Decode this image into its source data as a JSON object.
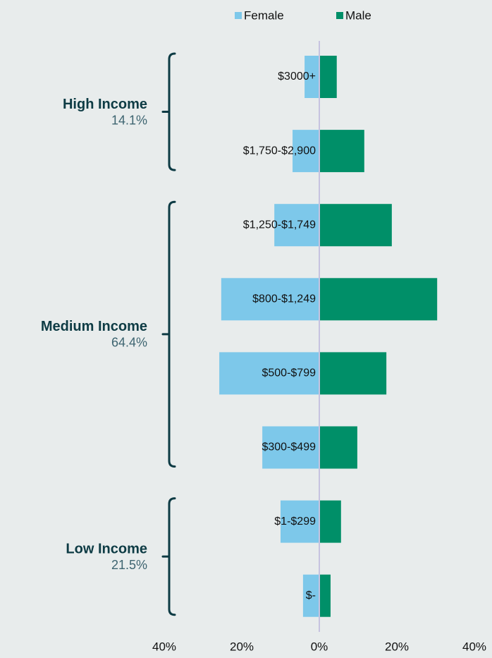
{
  "chart_data": {
    "type": "butterfly_bar",
    "groups": [
      {
        "name": "High Income",
        "share": "14.1%",
        "categories": [
          "$3000+",
          "$1,750-$2,900"
        ]
      },
      {
        "name": "Medium Income",
        "share": "64.4%",
        "categories": [
          "$1,250-$1,749",
          "$800-$1,249",
          "$500-$799",
          "$300-$499"
        ]
      },
      {
        "name": "Low Income",
        "share": "21.5%",
        "categories": [
          "$1-$299",
          "$-"
        ]
      }
    ],
    "series": [
      {
        "name": "Female",
        "color": "#7dc8ea",
        "side": "left",
        "values": [
          3.8,
          6.9,
          11.6,
          25.3,
          25.8,
          14.7,
          10.0,
          4.2
        ]
      },
      {
        "name": "Male",
        "color": "#008f68",
        "side": "right",
        "values": [
          4.5,
          11.6,
          18.7,
          30.4,
          17.3,
          9.8,
          5.6,
          2.9
        ]
      }
    ],
    "xlim": [
      -40,
      40
    ],
    "xticks": [
      {
        "value": -40,
        "label": "40%"
      },
      {
        "value": -20,
        "label": "20%"
      },
      {
        "value": 0,
        "label": "0%"
      },
      {
        "value": 20,
        "label": "20%"
      },
      {
        "value": 40,
        "label": "40%"
      }
    ]
  }
}
